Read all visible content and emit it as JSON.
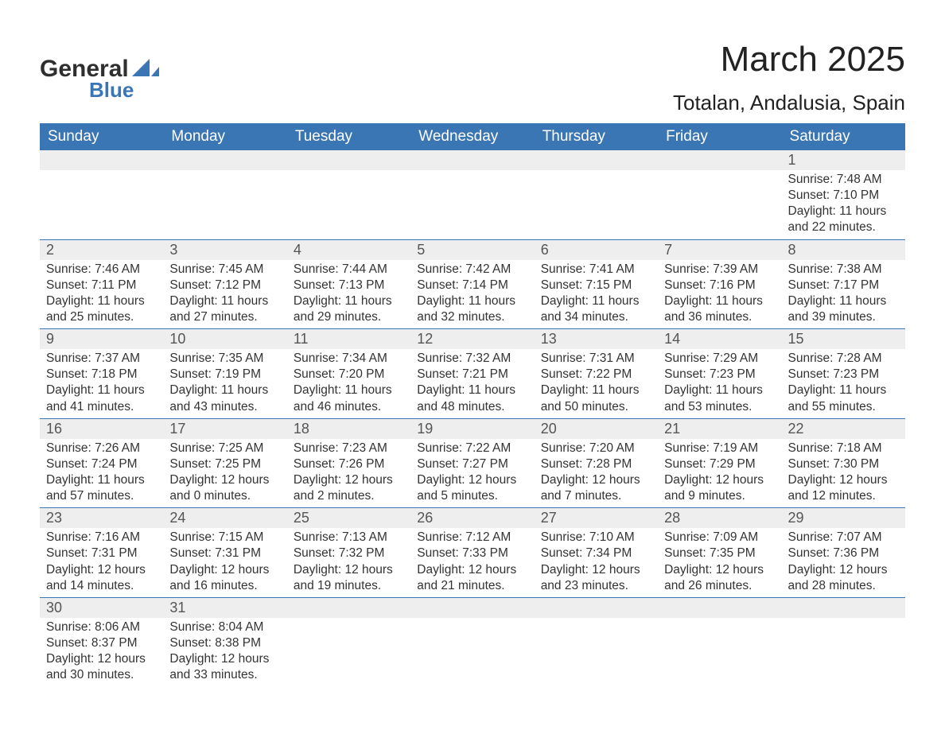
{
  "brand": {
    "name_general": "General",
    "name_blue": "Blue"
  },
  "title": {
    "month_year": "March 2025",
    "location": "Totalan, Andalusia, Spain"
  },
  "colors": {
    "header_bg": "#3a75b4",
    "header_text": "#ffffff",
    "daynum_bg": "#eeeeee",
    "body_bg": "#ffffff",
    "row_border": "#3a75b4",
    "text": "#333333",
    "logo_blue": "#3a75b4"
  },
  "typography": {
    "month_title_pt": 44,
    "location_pt": 26,
    "dayheader_pt": 19,
    "daynum_pt": 18,
    "detail_pt": 15.5,
    "font_family": "Arial"
  },
  "layout": {
    "type": "calendar-table",
    "columns": 7,
    "rows": 6,
    "start_day_index": 6
  },
  "day_headers": [
    "Sunday",
    "Monday",
    "Tuesday",
    "Wednesday",
    "Thursday",
    "Friday",
    "Saturday"
  ],
  "days": [
    {
      "n": 1,
      "sunrise": "7:48 AM",
      "sunset": "7:10 PM",
      "dh": 11,
      "dm": 22
    },
    {
      "n": 2,
      "sunrise": "7:46 AM",
      "sunset": "7:11 PM",
      "dh": 11,
      "dm": 25
    },
    {
      "n": 3,
      "sunrise": "7:45 AM",
      "sunset": "7:12 PM",
      "dh": 11,
      "dm": 27
    },
    {
      "n": 4,
      "sunrise": "7:44 AM",
      "sunset": "7:13 PM",
      "dh": 11,
      "dm": 29
    },
    {
      "n": 5,
      "sunrise": "7:42 AM",
      "sunset": "7:14 PM",
      "dh": 11,
      "dm": 32
    },
    {
      "n": 6,
      "sunrise": "7:41 AM",
      "sunset": "7:15 PM",
      "dh": 11,
      "dm": 34
    },
    {
      "n": 7,
      "sunrise": "7:39 AM",
      "sunset": "7:16 PM",
      "dh": 11,
      "dm": 36
    },
    {
      "n": 8,
      "sunrise": "7:38 AM",
      "sunset": "7:17 PM",
      "dh": 11,
      "dm": 39
    },
    {
      "n": 9,
      "sunrise": "7:37 AM",
      "sunset": "7:18 PM",
      "dh": 11,
      "dm": 41
    },
    {
      "n": 10,
      "sunrise": "7:35 AM",
      "sunset": "7:19 PM",
      "dh": 11,
      "dm": 43
    },
    {
      "n": 11,
      "sunrise": "7:34 AM",
      "sunset": "7:20 PM",
      "dh": 11,
      "dm": 46
    },
    {
      "n": 12,
      "sunrise": "7:32 AM",
      "sunset": "7:21 PM",
      "dh": 11,
      "dm": 48
    },
    {
      "n": 13,
      "sunrise": "7:31 AM",
      "sunset": "7:22 PM",
      "dh": 11,
      "dm": 50
    },
    {
      "n": 14,
      "sunrise": "7:29 AM",
      "sunset": "7:23 PM",
      "dh": 11,
      "dm": 53
    },
    {
      "n": 15,
      "sunrise": "7:28 AM",
      "sunset": "7:23 PM",
      "dh": 11,
      "dm": 55
    },
    {
      "n": 16,
      "sunrise": "7:26 AM",
      "sunset": "7:24 PM",
      "dh": 11,
      "dm": 57
    },
    {
      "n": 17,
      "sunrise": "7:25 AM",
      "sunset": "7:25 PM",
      "dh": 12,
      "dm": 0
    },
    {
      "n": 18,
      "sunrise": "7:23 AM",
      "sunset": "7:26 PM",
      "dh": 12,
      "dm": 2
    },
    {
      "n": 19,
      "sunrise": "7:22 AM",
      "sunset": "7:27 PM",
      "dh": 12,
      "dm": 5
    },
    {
      "n": 20,
      "sunrise": "7:20 AM",
      "sunset": "7:28 PM",
      "dh": 12,
      "dm": 7
    },
    {
      "n": 21,
      "sunrise": "7:19 AM",
      "sunset": "7:29 PM",
      "dh": 12,
      "dm": 9
    },
    {
      "n": 22,
      "sunrise": "7:18 AM",
      "sunset": "7:30 PM",
      "dh": 12,
      "dm": 12
    },
    {
      "n": 23,
      "sunrise": "7:16 AM",
      "sunset": "7:31 PM",
      "dh": 12,
      "dm": 14
    },
    {
      "n": 24,
      "sunrise": "7:15 AM",
      "sunset": "7:31 PM",
      "dh": 12,
      "dm": 16
    },
    {
      "n": 25,
      "sunrise": "7:13 AM",
      "sunset": "7:32 PM",
      "dh": 12,
      "dm": 19
    },
    {
      "n": 26,
      "sunrise": "7:12 AM",
      "sunset": "7:33 PM",
      "dh": 12,
      "dm": 21
    },
    {
      "n": 27,
      "sunrise": "7:10 AM",
      "sunset": "7:34 PM",
      "dh": 12,
      "dm": 23
    },
    {
      "n": 28,
      "sunrise": "7:09 AM",
      "sunset": "7:35 PM",
      "dh": 12,
      "dm": 26
    },
    {
      "n": 29,
      "sunrise": "7:07 AM",
      "sunset": "7:36 PM",
      "dh": 12,
      "dm": 28
    },
    {
      "n": 30,
      "sunrise": "8:06 AM",
      "sunset": "8:37 PM",
      "dh": 12,
      "dm": 30
    },
    {
      "n": 31,
      "sunrise": "8:04 AM",
      "sunset": "8:38 PM",
      "dh": 12,
      "dm": 33
    }
  ],
  "labels": {
    "sunrise": "Sunrise:",
    "sunset": "Sunset:",
    "daylight_prefix": "Daylight:",
    "hours_word": "hours",
    "and_word": "and",
    "minutes_word": "minutes."
  }
}
